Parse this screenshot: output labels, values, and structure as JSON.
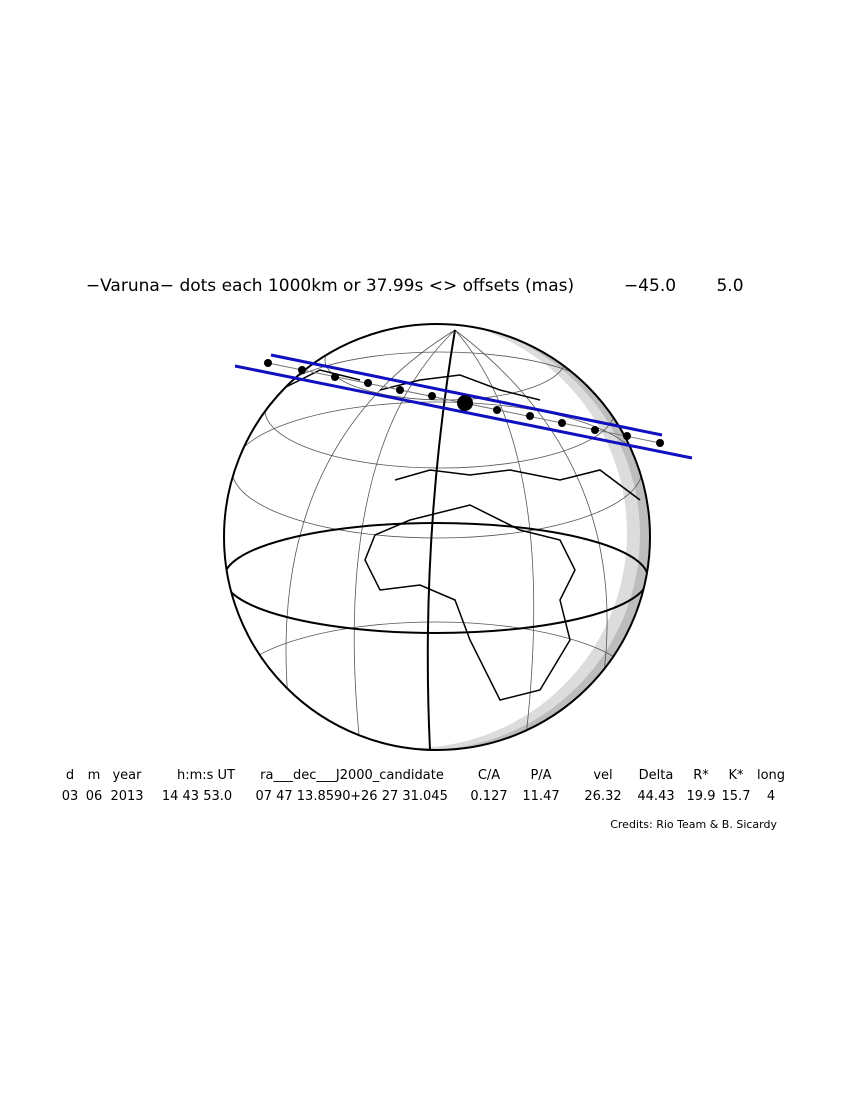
{
  "title": "−Varuna−  dots each 1000km or 37.99s <> offsets (mas)",
  "offsets": [
    "−45.0",
    "5.0"
  ],
  "table": {
    "header": [
      "d",
      "m",
      "year",
      "h:m:s UT",
      "ra___dec___J2000_candidate",
      "C/A",
      "P/A",
      "vel",
      "Delta",
      "R*",
      "K*",
      "long"
    ],
    "values": [
      "03",
      "06",
      "2013",
      "14 43 53.0",
      "07 47 13.8590",
      "+26 27 31.045",
      "0.127",
      "11.47",
      "26.32",
      "44.43",
      "19.9",
      "15.7",
      "4"
    ]
  },
  "credits": "Credits: Rio Team & B. Sicardy"
}
